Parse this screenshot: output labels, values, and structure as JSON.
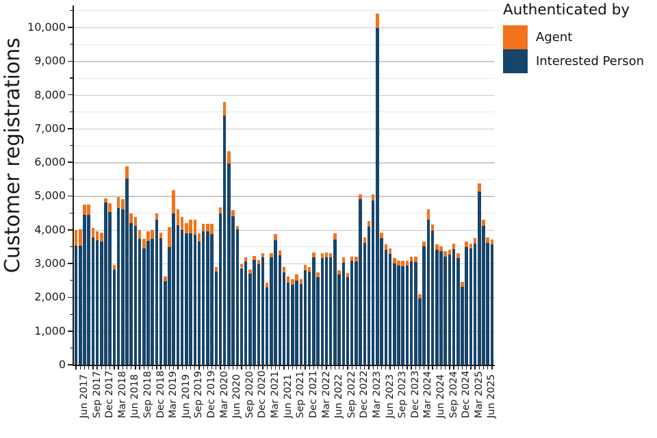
{
  "chart_data": {
    "type": "bar",
    "stacked": true,
    "title": "",
    "ylabel": "Customer registrations",
    "legend_title": "Authenticated by",
    "legend_position": "top-right",
    "grid": "horizontal; minor every 500, major every 1000",
    "ylim": [
      0,
      10608
    ],
    "y_ticks": [
      "0",
      "1,000",
      "2,000",
      "3,000",
      "4,000",
      "5,000",
      "6,000",
      "7,000",
      "8,000",
      "9,000",
      "10,000"
    ],
    "x_tick_rule": "every 3rd month labeled, from Jun 2017 to Jun 2025, rotated 90deg",
    "months": [
      "Apr 2017",
      "May 2017",
      "Jun 2017",
      "Jul 2017",
      "Aug 2017",
      "Sep 2017",
      "Oct 2017",
      "Nov 2017",
      "Dec 2017",
      "Jan 2018",
      "Feb 2018",
      "Mar 2018",
      "Apr 2018",
      "May 2018",
      "Jun 2018",
      "Jul 2018",
      "Aug 2018",
      "Sep 2018",
      "Oct 2018",
      "Nov 2018",
      "Dec 2018",
      "Jan 2019",
      "Feb 2019",
      "Mar 2019",
      "Apr 2019",
      "May 2019",
      "Jun 2019",
      "Jul 2019",
      "Aug 2019",
      "Sep 2019",
      "Oct 2019",
      "Nov 2019",
      "Dec 2019",
      "Jan 2020",
      "Feb 2020",
      "Mar 2020",
      "Apr 2020",
      "May 2020",
      "Jun 2020",
      "Jul 2020",
      "Aug 2020",
      "Sep 2020",
      "Oct 2020",
      "Nov 2020",
      "Dec 2020",
      "Jan 2021",
      "Feb 2021",
      "Mar 2021",
      "Apr 2021",
      "May 2021",
      "Jun 2021",
      "Jul 2021",
      "Aug 2021",
      "Sep 2021",
      "Oct 2021",
      "Nov 2021",
      "Dec 2021",
      "Jan 2022",
      "Feb 2022",
      "Mar 2022",
      "Apr 2022",
      "May 2022",
      "Jun 2022",
      "Jul 2022",
      "Aug 2022",
      "Sep 2022",
      "Oct 2022",
      "Nov 2022",
      "Dec 2022",
      "Jan 2023",
      "Feb 2023",
      "Mar 2023",
      "Apr 2023",
      "May 2023",
      "Jun 2023",
      "Jul 2023",
      "Aug 2023",
      "Sep 2023",
      "Oct 2023",
      "Nov 2023",
      "Dec 2023",
      "Jan 2024",
      "Feb 2024",
      "Mar 2024",
      "Apr 2024",
      "May 2024",
      "Jun 2024",
      "Jul 2024",
      "Aug 2024",
      "Sep 2024",
      "Oct 2024",
      "Nov 2024",
      "Dec 2024",
      "Jan 2025",
      "Feb 2025",
      "Mar 2025",
      "Apr 2025",
      "May 2025",
      "Jun 2025"
    ],
    "series": [
      {
        "name": "Agent",
        "color": "#f1731d",
        "values": [
          480,
          490,
          300,
          300,
          285,
          250,
          255,
          120,
          270,
          140,
          315,
          300,
          360,
          290,
          270,
          260,
          280,
          270,
          260,
          180,
          160,
          145,
          585,
          700,
          460,
          380,
          300,
          400,
          450,
          240,
          230,
          230,
          300,
          140,
          180,
          400,
          370,
          180,
          100,
          115,
          120,
          125,
          120,
          120,
          135,
          135,
          135,
          180,
          140,
          160,
          185,
          165,
          170,
          145,
          165,
          155,
          150,
          135,
          155,
          135,
          135,
          170,
          135,
          150,
          115,
          135,
          155,
          150,
          170,
          170,
          180,
          430,
          170,
          155,
          150,
          150,
          145,
          165,
          145,
          155,
          160,
          135,
          140,
          300,
          170,
          155,
          150,
          150,
          150,
          160,
          155,
          135,
          160,
          150,
          160,
          230,
          170,
          160,
          150
        ]
      },
      {
        "name": "Interested Person",
        "color": "#17456a",
        "values": [
          3520,
          3530,
          4445,
          4445,
          3780,
          3700,
          3650,
          4810,
          4515,
          2820,
          4650,
          4610,
          5520,
          4200,
          4110,
          3740,
          3450,
          3680,
          3730,
          4300,
          3760,
          2465,
          3490,
          4480,
          4140,
          4000,
          3900,
          3900,
          3850,
          3660,
          3950,
          3950,
          3880,
          2760,
          4480,
          7390,
          5960,
          4410,
          4020,
          2870,
          3055,
          2700,
          3110,
          2980,
          3175,
          2295,
          3175,
          3700,
          3240,
          2740,
          2430,
          2380,
          2500,
          2400,
          2805,
          2750,
          3175,
          2600,
          3155,
          3190,
          3175,
          3715,
          2670,
          3025,
          2600,
          3075,
          3055,
          4900,
          3610,
          4090,
          4870,
          9970,
          3750,
          3410,
          3295,
          3005,
          2940,
          2920,
          2940,
          3055,
          3050,
          1960,
          3510,
          4300,
          3985,
          3410,
          3360,
          3210,
          3260,
          3430,
          3155,
          2310,
          3490,
          3440,
          3590,
          5140,
          4120,
          3610,
          3565
        ]
      }
    ],
    "axis_color": "#1a1a1a",
    "major_grid_color": "#c9c9c9",
    "minor_grid_color": "#e7e7e7"
  }
}
